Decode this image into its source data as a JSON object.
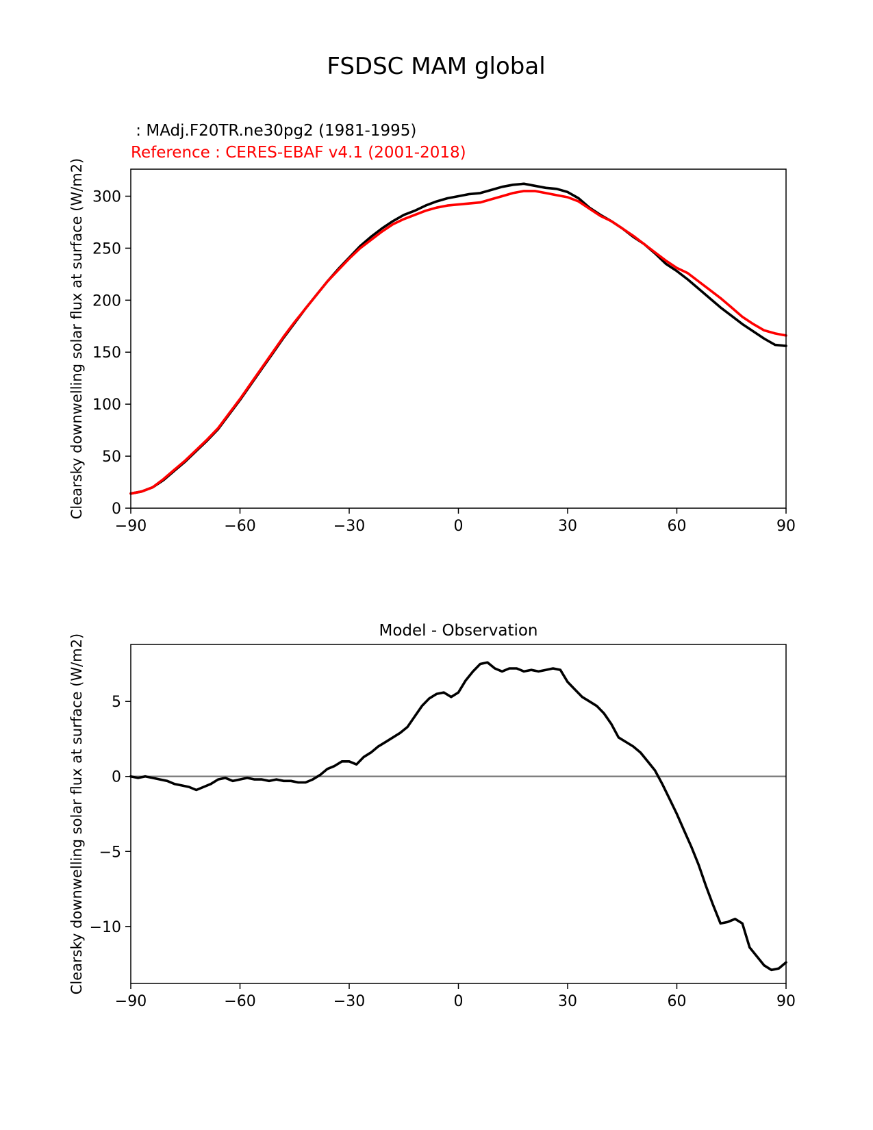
{
  "figure": {
    "title": "FSDSC MAM global"
  },
  "chart_data": [
    {
      "type": "line",
      "title": "",
      "title_lines": [
        {
          "text": " : MAdj.F20TR.ne30pg2 (1981-1995)",
          "color": "#000000"
        },
        {
          "text": "Reference : CERES-EBAF v4.1 (2001-2018)",
          "color": "#ff0000"
        }
      ],
      "xlabel": "",
      "ylabel": "Clearsky downwelling solar flux at surface (W/m2)",
      "xlim": [
        -90,
        90
      ],
      "ylim": [
        0,
        326
      ],
      "xticks": [
        -90,
        -60,
        -30,
        0,
        30,
        60,
        90
      ],
      "xtick_labels": [
        "−90",
        "−60",
        "−30",
        "0",
        "30",
        "60",
        "90"
      ],
      "yticks": [
        0,
        50,
        100,
        150,
        200,
        250,
        300
      ],
      "ytick_labels": [
        "0",
        "50",
        "100",
        "150",
        "200",
        "250",
        "300"
      ],
      "grid": false,
      "series": [
        {
          "color": "#000000",
          "x": [
            -90,
            -87,
            -84,
            -81,
            -78,
            -75,
            -72,
            -69,
            -66,
            -63,
            -60,
            -57,
            -54,
            -51,
            -48,
            -45,
            -42,
            -39,
            -36,
            -33,
            -30,
            -27,
            -24,
            -21,
            -18,
            -15,
            -12,
            -9,
            -6,
            -3,
            0,
            3,
            6,
            9,
            12,
            15,
            18,
            21,
            24,
            27,
            30,
            33,
            36,
            39,
            42,
            45,
            48,
            51,
            54,
            57,
            60,
            63,
            66,
            69,
            72,
            75,
            78,
            81,
            84,
            87,
            90
          ],
          "y": [
            14,
            16,
            20,
            27,
            36,
            45,
            55,
            65,
            76,
            90,
            104,
            119,
            134,
            149,
            164,
            178,
            192,
            205,
            218,
            230,
            241,
            252,
            261,
            269,
            276,
            282,
            286,
            291,
            295,
            298,
            300,
            302,
            303,
            306,
            309,
            311,
            312,
            310,
            308,
            307,
            304,
            298,
            289,
            282,
            276,
            269,
            261,
            254,
            245,
            235,
            228,
            220,
            211,
            202,
            193,
            185,
            177,
            170,
            163,
            157,
            156
          ]
        },
        {
          "color": "#ff0000",
          "x": [
            -90,
            -87,
            -84,
            -81,
            -78,
            -75,
            -72,
            -69,
            -66,
            -63,
            -60,
            -57,
            -54,
            -51,
            -48,
            -45,
            -42,
            -39,
            -36,
            -33,
            -30,
            -27,
            -24,
            -21,
            -18,
            -15,
            -12,
            -9,
            -6,
            -3,
            0,
            3,
            6,
            9,
            12,
            15,
            18,
            21,
            24,
            27,
            30,
            33,
            36,
            39,
            42,
            45,
            48,
            51,
            54,
            57,
            60,
            63,
            66,
            69,
            72,
            75,
            78,
            81,
            84,
            87,
            90
          ],
          "y": [
            14,
            16,
            20,
            28,
            37,
            46,
            56,
            66,
            77,
            91,
            105,
            120,
            135,
            150,
            165,
            179,
            192,
            205,
            218,
            229,
            240,
            250,
            258,
            266,
            273,
            278,
            282,
            286,
            289,
            291,
            292,
            293,
            294,
            297,
            300,
            303,
            305,
            305,
            303,
            301,
            299,
            295,
            288,
            281,
            276,
            269,
            262,
            254,
            246,
            238,
            231,
            226,
            218,
            210,
            202,
            193,
            184,
            177,
            171,
            168,
            166
          ]
        }
      ]
    },
    {
      "type": "line",
      "title": "Model - Observation",
      "xlabel": "",
      "ylabel": "Clearsky downwelling solar flux at surface (W/m2)",
      "xlim": [
        -90,
        90
      ],
      "ylim": [
        -13.8,
        8.8
      ],
      "xticks": [
        -90,
        -60,
        -30,
        0,
        30,
        60,
        90
      ],
      "xtick_labels": [
        "−90",
        "−60",
        "−30",
        "0",
        "30",
        "60",
        "90"
      ],
      "yticks": [
        -10,
        -5,
        0,
        5
      ],
      "ytick_labels": [
        "−10",
        "−5",
        "0",
        "5"
      ],
      "grid": false,
      "zero_line": {
        "y": 0,
        "color": "#808080"
      },
      "series": [
        {
          "color": "#000000",
          "x": [
            -90,
            -88,
            -86,
            -84,
            -82,
            -80,
            -78,
            -76,
            -74,
            -72,
            -70,
            -68,
            -66,
            -64,
            -62,
            -60,
            -58,
            -56,
            -54,
            -52,
            -50,
            -48,
            -46,
            -44,
            -42,
            -40,
            -38,
            -36,
            -34,
            -32,
            -30,
            -28,
            -26,
            -24,
            -22,
            -20,
            -18,
            -16,
            -14,
            -12,
            -10,
            -8,
            -6,
            -4,
            -2,
            0,
            2,
            4,
            6,
            8,
            10,
            12,
            14,
            16,
            18,
            20,
            22,
            24,
            26,
            28,
            30,
            32,
            34,
            36,
            38,
            40,
            42,
            44,
            46,
            48,
            50,
            52,
            54,
            56,
            58,
            60,
            62,
            64,
            66,
            68,
            70,
            72,
            74,
            76,
            78,
            80,
            82,
            84,
            86,
            88,
            90
          ],
          "y": [
            0,
            -0.1,
            0,
            -0.1,
            -0.2,
            -0.3,
            -0.5,
            -0.6,
            -0.7,
            -0.9,
            -0.7,
            -0.5,
            -0.2,
            -0.1,
            -0.3,
            -0.2,
            -0.1,
            -0.2,
            -0.2,
            -0.3,
            -0.2,
            -0.3,
            -0.3,
            -0.4,
            -0.4,
            -0.2,
            0.1,
            0.5,
            0.7,
            1.0,
            1.0,
            0.8,
            1.3,
            1.6,
            2.0,
            2.3,
            2.6,
            2.9,
            3.3,
            4.0,
            4.7,
            5.2,
            5.5,
            5.6,
            5.3,
            5.6,
            6.4,
            7.0,
            7.5,
            7.6,
            7.2,
            7.0,
            7.2,
            7.2,
            7.0,
            7.1,
            7.0,
            7.1,
            7.2,
            7.1,
            6.3,
            5.8,
            5.3,
            5.0,
            4.7,
            4.2,
            3.5,
            2.6,
            2.3,
            2.0,
            1.6,
            1.0,
            0.4,
            -0.5,
            -1.5,
            -2.5,
            -3.6,
            -4.7,
            -5.9,
            -7.3,
            -8.6,
            -9.8,
            -9.7,
            -9.5,
            -9.8,
            -11.4,
            -12.0,
            -12.6,
            -12.9,
            -12.8,
            -12.4
          ]
        }
      ]
    }
  ]
}
